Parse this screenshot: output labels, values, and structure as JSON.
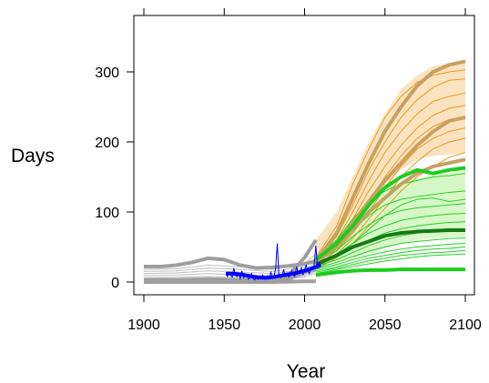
{
  "chart_data": {
    "type": "line",
    "title": "",
    "xlabel": "Year",
    "ylabel": "Days",
    "xlim": [
      1900,
      2100
    ],
    "ylim": [
      0,
      340
    ],
    "x_ticks": [
      "1900",
      "1950",
      "2000",
      "2050",
      "2100"
    ],
    "y_ticks": [
      "0",
      "100",
      "200",
      "300"
    ],
    "grid": false,
    "legend": "none",
    "colors": {
      "historical": "#9e9e9e",
      "historical_thin": "#c8c8c8",
      "high_scenario": "#e89a1e",
      "high_scenario_bold": "#c8a060",
      "high_band": "#fbe3c0",
      "low_scenario": "#22d422",
      "low_scenario_bold_light": "#1ecc1e",
      "low_scenario_bold_dark": "#157a15",
      "low_band": "#d8f7c8",
      "observed": "#0000ff"
    },
    "historical_bold": [
      {
        "x": [
          1900,
          1910,
          1920,
          1930,
          1940,
          1950,
          1960,
          1970,
          1980,
          1990,
          2000,
          2007
        ],
        "y": [
          22,
          22,
          24,
          28,
          34,
          32,
          24,
          20,
          21,
          23,
          26,
          30
        ]
      },
      {
        "x": [
          1900,
          1920,
          1940,
          1960,
          1980,
          2000,
          2007
        ],
        "y": [
          0,
          0,
          0,
          0,
          0,
          1,
          1
        ]
      },
      {
        "x": [
          1900,
          1920,
          1940,
          1960,
          1980,
          1990,
          2000,
          2007
        ],
        "y": [
          2,
          2,
          3,
          2,
          2,
          4,
          14,
          18
        ]
      },
      {
        "x": [
          1900,
          1920,
          1940,
          1960,
          1980,
          1990,
          2000,
          2007
        ],
        "y": [
          3,
          3,
          4,
          3,
          4,
          10,
          35,
          60
        ]
      }
    ],
    "historical_thin": [
      {
        "x": [
          1900,
          1920,
          1940,
          1960,
          1980,
          2000,
          2007
        ],
        "y": [
          6,
          7,
          8,
          7,
          6,
          10,
          20
        ]
      },
      {
        "x": [
          1900,
          1920,
          1940,
          1960,
          1980,
          2000,
          2007
        ],
        "y": [
          9,
          10,
          12,
          10,
          9,
          14,
          24
        ]
      },
      {
        "x": [
          1900,
          1920,
          1940,
          1960,
          1980,
          2000,
          2007
        ],
        "y": [
          12,
          13,
          16,
          14,
          12,
          18,
          28
        ]
      },
      {
        "x": [
          1900,
          1920,
          1940,
          1960,
          1980,
          2000,
          2007
        ],
        "y": [
          15,
          16,
          20,
          18,
          15,
          22,
          34
        ]
      },
      {
        "x": [
          1900,
          1920,
          1940,
          1960,
          1980,
          2000,
          2007
        ],
        "y": [
          5,
          5,
          6,
          5,
          5,
          8,
          12
        ]
      },
      {
        "x": [
          1900,
          1920,
          1940,
          1960,
          1980,
          2000,
          2007
        ],
        "y": [
          18,
          19,
          24,
          22,
          18,
          26,
          40
        ]
      },
      {
        "x": [
          1900,
          1920,
          1940,
          1960,
          1980,
          2000,
          2007
        ],
        "y": [
          4,
          4,
          5,
          4,
          4,
          7,
          16
        ]
      }
    ],
    "high_scenario_band": {
      "x": [
        2007,
        2020,
        2030,
        2040,
        2050,
        2060,
        2070,
        2080,
        2090,
        2100
      ],
      "lower": [
        25,
        50,
        80,
        110,
        140,
        160,
        175,
        180,
        182,
        183
      ],
      "upper": [
        60,
        100,
        150,
        200,
        240,
        275,
        295,
        308,
        313,
        315
      ]
    },
    "low_scenario_band": {
      "x": [
        2007,
        2020,
        2030,
        2040,
        2050,
        2060,
        2070,
        2080,
        2090,
        2100
      ],
      "lower": [
        20,
        28,
        35,
        40,
        48,
        55,
        60,
        63,
        64,
        65
      ],
      "upper": [
        40,
        70,
        95,
        120,
        135,
        142,
        148,
        152,
        155,
        165
      ]
    },
    "high_scenario_bold": [
      {
        "x": [
          2007,
          2020,
          2030,
          2040,
          2050,
          2060,
          2070,
          2080,
          2090,
          2100
        ],
        "y": [
          30,
          70,
          120,
          170,
          215,
          250,
          280,
          300,
          310,
          315
        ]
      },
      {
        "x": [
          2007,
          2020,
          2030,
          2040,
          2050,
          2060,
          2070,
          2080,
          2090,
          2100
        ],
        "y": [
          30,
          55,
          85,
          115,
          145,
          170,
          195,
          215,
          230,
          235
        ]
      },
      {
        "x": [
          2007,
          2020,
          2030,
          2040,
          2050,
          2060,
          2070,
          2080,
          2090,
          2100
        ],
        "y": [
          28,
          50,
          75,
          100,
          120,
          140,
          155,
          165,
          170,
          175
        ]
      }
    ],
    "high_scenario_thin": [
      {
        "x": [
          2007,
          2020,
          2030,
          2040,
          2050,
          2060,
          2070,
          2080,
          2090,
          2100
        ],
        "y": [
          35,
          80,
          140,
          190,
          235,
          265,
          285,
          295,
          300,
          303
        ]
      },
      {
        "x": [
          2007,
          2020,
          2030,
          2040,
          2050,
          2060,
          2070,
          2080,
          2090,
          2100
        ],
        "y": [
          30,
          65,
          110,
          160,
          200,
          235,
          260,
          278,
          288,
          290
        ]
      },
      {
        "x": [
          2007,
          2020,
          2030,
          2040,
          2050,
          2060,
          2070,
          2080,
          2090,
          2100
        ],
        "y": [
          28,
          60,
          100,
          145,
          185,
          215,
          240,
          258,
          265,
          270
        ]
      },
      {
        "x": [
          2007,
          2020,
          2030,
          2040,
          2050,
          2060,
          2070,
          2080,
          2090,
          2100
        ],
        "y": [
          26,
          55,
          90,
          130,
          165,
          195,
          220,
          238,
          248,
          252
        ]
      },
      {
        "x": [
          2007,
          2020,
          2030,
          2040,
          2050,
          2060,
          2070,
          2080,
          2090,
          2100
        ],
        "y": [
          24,
          50,
          80,
          115,
          150,
          180,
          205,
          222,
          232,
          236
        ]
      },
      {
        "x": [
          2007,
          2020,
          2030,
          2040,
          2050,
          2060,
          2070,
          2080,
          2090,
          2100
        ],
        "y": [
          22,
          45,
          70,
          100,
          135,
          165,
          190,
          205,
          215,
          220
        ]
      },
      {
        "x": [
          2007,
          2020,
          2030,
          2040,
          2050,
          2060,
          2070,
          2080,
          2090,
          2100
        ],
        "y": [
          20,
          40,
          62,
          90,
          120,
          150,
          172,
          190,
          200,
          205
        ]
      },
      {
        "x": [
          2007,
          2020,
          2030,
          2040,
          2050,
          2060,
          2070,
          2080,
          2090,
          2100
        ],
        "y": [
          18,
          35,
          55,
          80,
          105,
          130,
          150,
          165,
          178,
          185
        ]
      }
    ],
    "low_scenario_bold": [
      {
        "x": [
          2007,
          2020,
          2030,
          2040,
          2050,
          2060,
          2070,
          2080,
          2090,
          2100
        ],
        "y": [
          32,
          55,
          80,
          110,
          135,
          150,
          160,
          155,
          160,
          163
        ],
        "tone": "light"
      },
      {
        "x": [
          2007,
          2020,
          2030,
          2040,
          2050,
          2060,
          2070,
          2080,
          2090,
          2100
        ],
        "y": [
          25,
          38,
          50,
          58,
          66,
          70,
          72,
          73,
          74,
          74
        ],
        "tone": "dark"
      },
      {
        "x": [
          2007,
          2020,
          2030,
          2040,
          2050,
          2060,
          2070,
          2080,
          2090,
          2100
        ],
        "y": [
          10,
          14,
          16,
          17,
          17,
          18,
          18,
          18,
          18,
          18
        ],
        "tone": "light"
      }
    ],
    "low_scenario_thin": [
      {
        "x": [
          2007,
          2020,
          2030,
          2040,
          2050,
          2060,
          2070,
          2080,
          2090,
          2100
        ],
        "y": [
          35,
          60,
          90,
          115,
          130,
          140,
          145,
          150,
          152,
          155
        ]
      },
      {
        "x": [
          2007,
          2020,
          2030,
          2040,
          2050,
          2060,
          2070,
          2080,
          2090,
          2100
        ],
        "y": [
          30,
          50,
          75,
          95,
          110,
          118,
          122,
          125,
          128,
          130
        ]
      },
      {
        "x": [
          2007,
          2020,
          2030,
          2040,
          2050,
          2060,
          2070,
          2080,
          2090,
          2100
        ],
        "y": [
          28,
          45,
          65,
          82,
          95,
          102,
          106,
          108,
          110,
          112
        ]
      },
      {
        "x": [
          2007,
          2020,
          2030,
          2040,
          2050,
          2060,
          2070,
          2080,
          2090,
          2100
        ],
        "y": [
          26,
          40,
          55,
          70,
          80,
          88,
          92,
          95,
          97,
          98
        ]
      },
      {
        "x": [
          2007,
          2020,
          2030,
          2040,
          2050,
          2060,
          2070,
          2080,
          2090,
          2100
        ],
        "y": [
          24,
          36,
          48,
          60,
          70,
          76,
          80,
          83,
          85,
          86
        ]
      },
      {
        "x": [
          2007,
          2020,
          2030,
          2040,
          2050,
          2060,
          2070,
          2080,
          2090,
          2100
        ],
        "y": [
          22,
          32,
          42,
          52,
          60,
          66,
          70,
          72,
          74,
          75
        ]
      },
      {
        "x": [
          2007,
          2020,
          2030,
          2040,
          2050,
          2060,
          2070,
          2080,
          2090,
          2100
        ],
        "y": [
          20,
          28,
          36,
          44,
          50,
          55,
          58,
          60,
          62,
          63
        ]
      },
      {
        "x": [
          2007,
          2020,
          2030,
          2040,
          2050,
          2060,
          2070,
          2080,
          2090,
          2100
        ],
        "y": [
          18,
          25,
          32,
          38,
          43,
          47,
          50,
          52,
          54,
          55
        ]
      },
      {
        "x": [
          2007,
          2020,
          2030,
          2040,
          2050,
          2060,
          2070,
          2080,
          2090,
          2100
        ],
        "y": [
          16,
          22,
          28,
          34,
          38,
          42,
          45,
          47,
          48,
          50
        ]
      },
      {
        "x": [
          2007,
          2020,
          2030,
          2040,
          2050,
          2060,
          2070,
          2080,
          2090,
          2100
        ],
        "y": [
          14,
          20,
          25,
          30,
          34,
          38,
          40,
          42,
          43,
          45
        ]
      },
      {
        "x": [
          2007,
          2020,
          2030,
          2040,
          2050,
          2060,
          2070,
          2080,
          2090,
          2100
        ],
        "y": [
          12,
          18,
          22,
          26,
          30,
          33,
          36,
          38,
          39,
          40
        ]
      },
      {
        "x": [
          2007,
          2020,
          2030,
          2040,
          2050,
          2060,
          2070,
          2080,
          2090,
          2100
        ],
        "y": [
          22,
          38,
          55,
          75,
          95,
          110,
          118,
          120,
          115,
          118
        ]
      }
    ],
    "observed": {
      "x": [
        1951,
        1952,
        1953,
        1954,
        1955,
        1956,
        1957,
        1958,
        1959,
        1960,
        1961,
        1962,
        1963,
        1964,
        1965,
        1966,
        1967,
        1968,
        1969,
        1970,
        1971,
        1972,
        1973,
        1974,
        1975,
        1976,
        1977,
        1978,
        1979,
        1980,
        1981,
        1982,
        1983,
        1984,
        1985,
        1986,
        1987,
        1988,
        1989,
        1990,
        1991,
        1992,
        1993,
        1994,
        1995,
        1996,
        1997,
        1998,
        1999,
        2000,
        2001,
        2002,
        2003,
        2004,
        2005,
        2006,
        2007,
        2008,
        2009,
        2010
      ],
      "y": [
        12,
        8,
        14,
        10,
        7,
        20,
        9,
        8,
        11,
        5,
        16,
        6,
        8,
        10,
        4,
        6,
        12,
        5,
        3,
        6,
        4,
        8,
        5,
        10,
        6,
        4,
        9,
        5,
        14,
        7,
        8,
        20,
        55,
        10,
        6,
        9,
        18,
        8,
        12,
        7,
        9,
        16,
        10,
        8,
        22,
        12,
        14,
        20,
        10,
        18,
        24,
        16,
        12,
        20,
        18,
        25,
        52,
        22,
        28,
        24
      ]
    },
    "observed_smooth": {
      "x": [
        1951,
        1955,
        1960,
        1965,
        1970,
        1975,
        1980,
        1985,
        1990,
        1995,
        2000,
        2005,
        2010
      ],
      "y": [
        12,
        12,
        11,
        9,
        7,
        6,
        7,
        9,
        11,
        13,
        16,
        20,
        24
      ]
    }
  }
}
